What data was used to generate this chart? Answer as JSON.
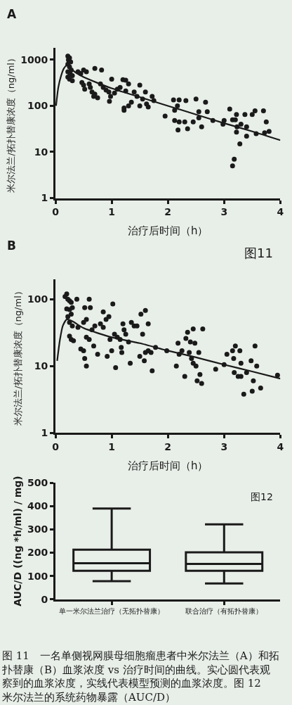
{
  "chart_data": [
    {
      "type": "scatter",
      "title": "A",
      "xlabel": "治疗后时间（h）",
      "ylabel": "米尔法兰/拓扑替康浓度（ng/ml）",
      "log": "y",
      "xlim": [
        0,
        4
      ],
      "xticks": [
        0,
        1,
        2,
        3,
        4
      ],
      "ylim": [
        1,
        1800
      ],
      "yticks": [
        1,
        10,
        100,
        1000
      ],
      "series": [
        {
          "type": "scatter",
          "color": "#1a1a1a",
          "marker": "circle",
          "x": [
            0.22,
            0.23,
            0.25,
            0.27,
            0.22,
            0.25,
            0.28,
            0.22,
            0.26,
            0.3,
            0.22,
            0.25,
            0.3,
            0.4,
            0.45,
            0.5,
            0.55,
            0.47,
            0.5,
            0.52,
            0.6,
            0.62,
            0.65,
            0.7,
            0.68,
            0.75,
            0.7,
            0.82,
            0.8,
            0.85,
            0.9,
            0.95,
            0.98,
            0.96,
            1.0,
            1.05,
            1.1,
            1.15,
            1.2,
            1.25,
            1.3,
            1.25,
            1.22,
            1.22,
            1.3,
            1.35,
            1.4,
            1.45,
            1.5,
            1.5,
            1.55,
            1.6,
            1.62,
            1.65,
            1.72,
            1.75,
            1.95,
            2.1,
            2.12,
            2.17,
            2.2,
            2.12,
            2.18,
            2.2,
            2.3,
            2.32,
            2.35,
            2.45,
            2.5,
            2.55,
            2.55,
            2.6,
            2.67,
            2.7,
            2.8,
            3.0,
            2.98,
            3.1,
            3.15,
            3.2,
            3.22,
            3.23,
            3.22,
            3.28,
            3.15,
            3.18,
            3.3,
            3.37,
            3.4,
            3.4,
            3.5,
            3.55,
            3.57,
            3.7,
            3.72,
            3.75,
            3.8
          ],
          "values": [
            1200,
            1000,
            1100,
            900,
            800,
            700,
            600,
            550,
            500,
            450,
            420,
            380,
            350,
            550,
            500,
            600,
            550,
            320,
            280,
            230,
            300,
            250,
            200,
            180,
            160,
            150,
            650,
            600,
            300,
            250,
            220,
            200,
            160,
            125,
            380,
            190,
            230,
            250,
            370,
            360,
            300,
            210,
            90,
            80,
            100,
            120,
            200,
            160,
            280,
            100,
            140,
            200,
            110,
            95,
            160,
            130,
            60,
            135,
            80,
            100,
            135,
            48,
            30,
            45,
            45,
            130,
            32,
            45,
            140,
            75,
            55,
            35,
            120,
            75,
            48,
            48,
            40,
            85,
            50,
            50,
            65,
            35,
            27,
            15,
            5,
            7,
            40,
            65,
            35,
            22,
            65,
            78,
            25,
            78,
            26,
            45,
            28
          ]
        },
        {
          "type": "line",
          "color": "#1a1a1a",
          "marker": "none",
          "line_style": "solid",
          "x": [
            0.01,
            0.05,
            0.1,
            0.15,
            0.22,
            0.3,
            0.5,
            1,
            1.5,
            2,
            2.5,
            3,
            3.5,
            4
          ],
          "values": [
            100,
            250,
            450,
            650,
            800,
            600,
            420,
            240,
            155,
            100,
            65,
            42,
            28,
            18
          ]
        }
      ]
    },
    {
      "type": "scatter",
      "title": "B",
      "xlabel": "治疗后时间（h）",
      "ylabel": "米尔法兰/拓扑替康浓度（ng/ml）",
      "annotations": [
        "图11"
      ],
      "log": "y",
      "xlim": [
        0,
        4
      ],
      "xticks": [
        0,
        1,
        2,
        3,
        4
      ],
      "ylim": [
        1,
        200
      ],
      "yticks": [
        1,
        10,
        100
      ],
      "series": [
        {
          "type": "scatter",
          "color": "#1a1a1a",
          "marker": "circle",
          "x": [
            0.17,
            0.2,
            0.25,
            0.22,
            0.28,
            0.3,
            0.25,
            0.2,
            0.28,
            0.22,
            0.25,
            0.3,
            0.25,
            0.28,
            0.32,
            0.38,
            0.4,
            0.45,
            0.5,
            0.52,
            0.55,
            0.52,
            0.55,
            0.6,
            0.62,
            0.5,
            0.55,
            0.6,
            0.65,
            0.68,
            0.7,
            0.75,
            0.8,
            0.85,
            0.85,
            0.9,
            0.92,
            0.95,
            0.97,
            1.0,
            1.02,
            1.05,
            1.07,
            1.1,
            1.15,
            1.17,
            1.18,
            1.2,
            1.22,
            1.25,
            1.3,
            1.33,
            1.35,
            1.4,
            1.45,
            1.5,
            1.52,
            1.55,
            1.58,
            1.6,
            1.6,
            1.65,
            1.65,
            1.7,
            1.72,
            1.78,
            1.98,
            2.15,
            2.18,
            2.2,
            2.25,
            2.3,
            2.32,
            2.35,
            2.38,
            2.4,
            2.42,
            2.45,
            2.45,
            2.48,
            2.5,
            2.52,
            2.55,
            2.57,
            2.6,
            2.62,
            2.85,
            3.0,
            3.05,
            3.15,
            3.17,
            3.18,
            3.2,
            3.25,
            3.28,
            3.3,
            3.3,
            3.35,
            3.4,
            3.48,
            3.5,
            3.52,
            3.55,
            3.58,
            3.65,
            3.95
          ],
          "values": [
            110,
            120,
            95,
            100,
            90,
            75,
            70,
            72,
            60,
            55,
            45,
            40,
            28,
            25,
            24,
            100,
            38,
            18,
            17,
            13,
            10,
            75,
            50,
            100,
            75,
            45,
            27,
            25,
            35,
            20,
            40,
            15,
            43,
            38,
            65,
            50,
            14,
            55,
            25,
            17,
            85,
            30,
            9.5,
            27,
            25,
            19,
            16,
            43,
            35,
            30,
            23,
            11,
            45,
            40,
            40,
            14,
            60,
            30,
            12,
            68,
            16,
            43,
            17,
            16,
            8.5,
            19,
            17,
            10,
            22,
            15,
            17,
            7,
            26,
            32,
            16,
            23,
            13,
            36,
            11,
            22,
            10,
            6,
            16,
            7.5,
            5.5,
            36,
            9,
            10.5,
            15,
            17,
            13,
            8,
            20,
            7,
            17,
            11,
            7,
            3.8,
            8,
            12,
            4.2,
            6,
            20,
            10,
            4.7,
            7.3
          ]
        },
        {
          "type": "line",
          "color": "#1a1a1a",
          "marker": "none",
          "line_style": "solid",
          "x": [
            0.03,
            0.08,
            0.13,
            0.2,
            0.3,
            0.5,
            1,
            1.5,
            2,
            2.5,
            3,
            3.5,
            4
          ],
          "values": [
            12,
            25,
            40,
            50,
            47,
            37,
            27,
            22,
            17,
            13.5,
            10.5,
            8.3,
            6.5
          ]
        }
      ]
    },
    {
      "type": "box",
      "ylabel": "AUC/D ((ng *h/ml) / mg)",
      "annotations": [
        "图12",
        "图 11　一名单侧视网膜母细胞瘤患者中米尔法兰（A）和拓扑替康（B）血浆浓度 vs 治疗时间的曲线。实心圆代表观察到的血浆浓度，实线代表模型预测的血浆浓度。图 12　米尔法兰的系统药物暴露（AUC/D）"
      ],
      "categories": [
        "单一米尔法兰治疗（无拓扑替康）",
        "联合治疗（有拓扑替康）"
      ],
      "ylim": [
        0,
        500
      ],
      "yticks": [
        0,
        100,
        200,
        300,
        400,
        500
      ],
      "series": [
        {
          "color": "#1a1a1a",
          "boxes": [
            {
              "low": 78,
              "q1": 122,
              "median": 155,
              "q3": 213,
              "high": 390
            },
            {
              "low": 68,
              "q1": 122,
              "median": 152,
              "q3": 202,
              "high": 322
            }
          ]
        }
      ]
    }
  ]
}
